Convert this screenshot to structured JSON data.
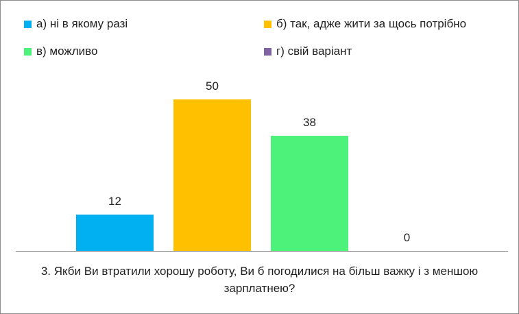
{
  "chart_data": {
    "type": "bar",
    "title": "3. Якби Ви втратили хорошу роботу, Ви б погодилися на більш важку і з меншою зарплатнею?",
    "xlabel": "",
    "ylabel": "",
    "ylim": [
      0,
      50
    ],
    "grid": false,
    "legend_position": "top",
    "data_labels": true,
    "categories": [
      "а)  ні в якому разі",
      "б)  так, адже жити за щось потрібно",
      "в)  можливо",
      "г)  свій варіант"
    ],
    "values": [
      12,
      50,
      38,
      0
    ],
    "colors": [
      "#00b0f0",
      "#ffc000",
      "#4df27a",
      "#8064a2"
    ]
  }
}
